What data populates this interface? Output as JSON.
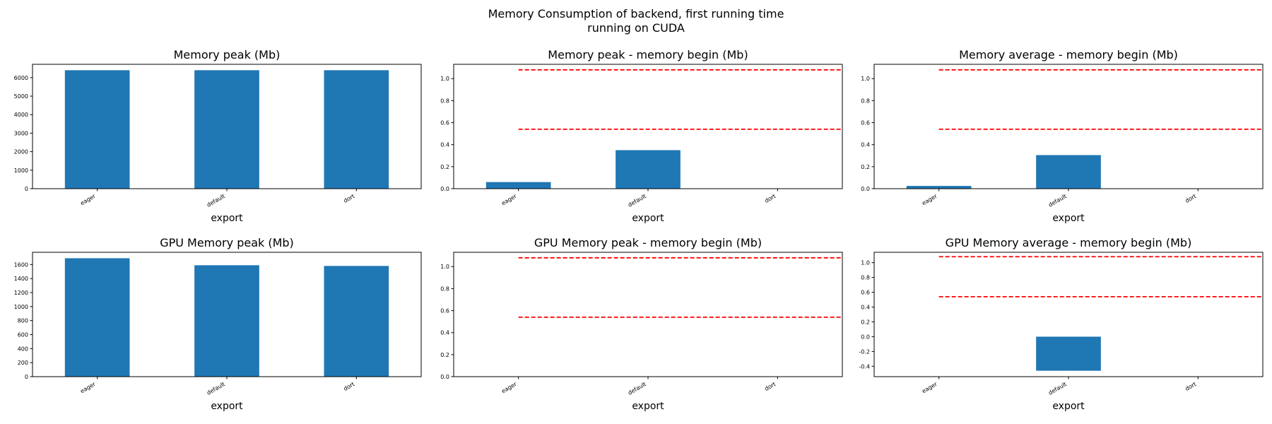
{
  "suptitle": {
    "line1": "Memory Consumption of backend, first running time",
    "line2": "running on CUDA"
  },
  "colors": {
    "bar": "#1f77b4",
    "reference_line": "#ff0000",
    "axis": "#000000"
  },
  "chart_data": [
    {
      "type": "bar",
      "title": "Memory peak (Mb)",
      "xlabel": "export",
      "categories": [
        "eager",
        "default",
        "dort"
      ],
      "values": [
        6400,
        6400,
        6400
      ],
      "ylim": [
        0,
        6720
      ],
      "yticks": [
        0,
        1000,
        2000,
        3000,
        4000,
        5000,
        6000
      ],
      "grid": false
    },
    {
      "type": "bar",
      "title": "Memory peak - memory begin (Mb)",
      "xlabel": "export",
      "categories": [
        "eager",
        "default",
        "dort"
      ],
      "values": [
        0.06,
        0.35,
        0
      ],
      "ylim": [
        0,
        1.13
      ],
      "yticks": [
        0.0,
        0.2,
        0.4,
        0.6,
        0.8,
        1.0
      ],
      "reference_lines": [
        1.08,
        0.54
      ],
      "grid": false
    },
    {
      "type": "bar",
      "title": "Memory average - memory begin (Mb)",
      "xlabel": "export",
      "categories": [
        "eager",
        "default",
        "dort"
      ],
      "values": [
        0.025,
        0.305,
        0
      ],
      "ylim": [
        0,
        1.13
      ],
      "yticks": [
        0.0,
        0.2,
        0.4,
        0.6,
        0.8,
        1.0
      ],
      "reference_lines": [
        1.08,
        0.54
      ],
      "grid": false
    },
    {
      "type": "bar",
      "title": "GPU Memory peak (Mb)",
      "xlabel": "export",
      "categories": [
        "eager",
        "default",
        "dort"
      ],
      "values": [
        1690,
        1590,
        1580
      ],
      "ylim": [
        0,
        1775
      ],
      "yticks": [
        0,
        200,
        400,
        600,
        800,
        1000,
        1200,
        1400,
        1600
      ],
      "grid": false
    },
    {
      "type": "bar",
      "title": "GPU Memory peak - memory begin (Mb)",
      "xlabel": "export",
      "categories": [
        "eager",
        "default",
        "dort"
      ],
      "values": [
        0,
        0,
        0
      ],
      "ylim": [
        0,
        1.13
      ],
      "yticks": [
        0.0,
        0.2,
        0.4,
        0.6,
        0.8,
        1.0
      ],
      "reference_lines": [
        1.08,
        0.54
      ],
      "grid": false
    },
    {
      "type": "bar",
      "title": "GPU Memory average - memory begin (Mb)",
      "xlabel": "export",
      "categories": [
        "eager",
        "default",
        "dort"
      ],
      "values": [
        0,
        -0.46,
        0
      ],
      "ylim": [
        -0.54,
        1.14
      ],
      "yticks": [
        -0.4,
        -0.2,
        0.0,
        0.2,
        0.4,
        0.6,
        0.8,
        1.0
      ],
      "reference_lines": [
        1.08,
        0.54
      ],
      "grid": false
    }
  ]
}
